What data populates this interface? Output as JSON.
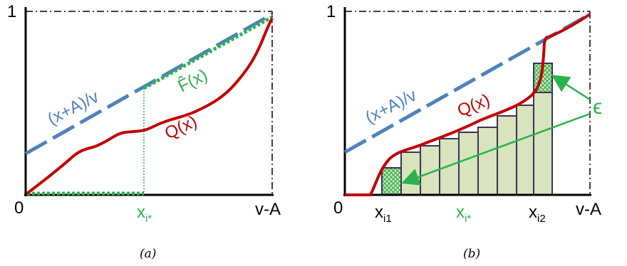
{
  "colors": {
    "axis": "#000000",
    "curve_q": "#c00000",
    "line_ref": "#4f81bd",
    "highlight": "#2bb24c",
    "bar_fill": "#d7e4bd",
    "bar_stroke": "#3f3151"
  },
  "panel_a": {
    "y_top_label": "1",
    "origin_label": "0",
    "x_end_label": "v-A",
    "x_mark_main": "x",
    "x_mark_sub": "i*",
    "line_label": "(x+A)/v",
    "curve_label": "Q(x)",
    "fhat_label": "F̂(x)",
    "caption": "(a)"
  },
  "panel_b": {
    "y_top_label": "1",
    "origin_label": "0",
    "x_end_label": "v-A",
    "x1_main": "x",
    "x1_sub": "i1",
    "xs_main": "x",
    "xs_sub": "i*",
    "x2_main": "x",
    "x2_sub": "i2",
    "line_label": "(x+A)/v",
    "curve_label": "Q(x)",
    "epsilon_label": "ϵ",
    "caption": "(b)"
  }
}
